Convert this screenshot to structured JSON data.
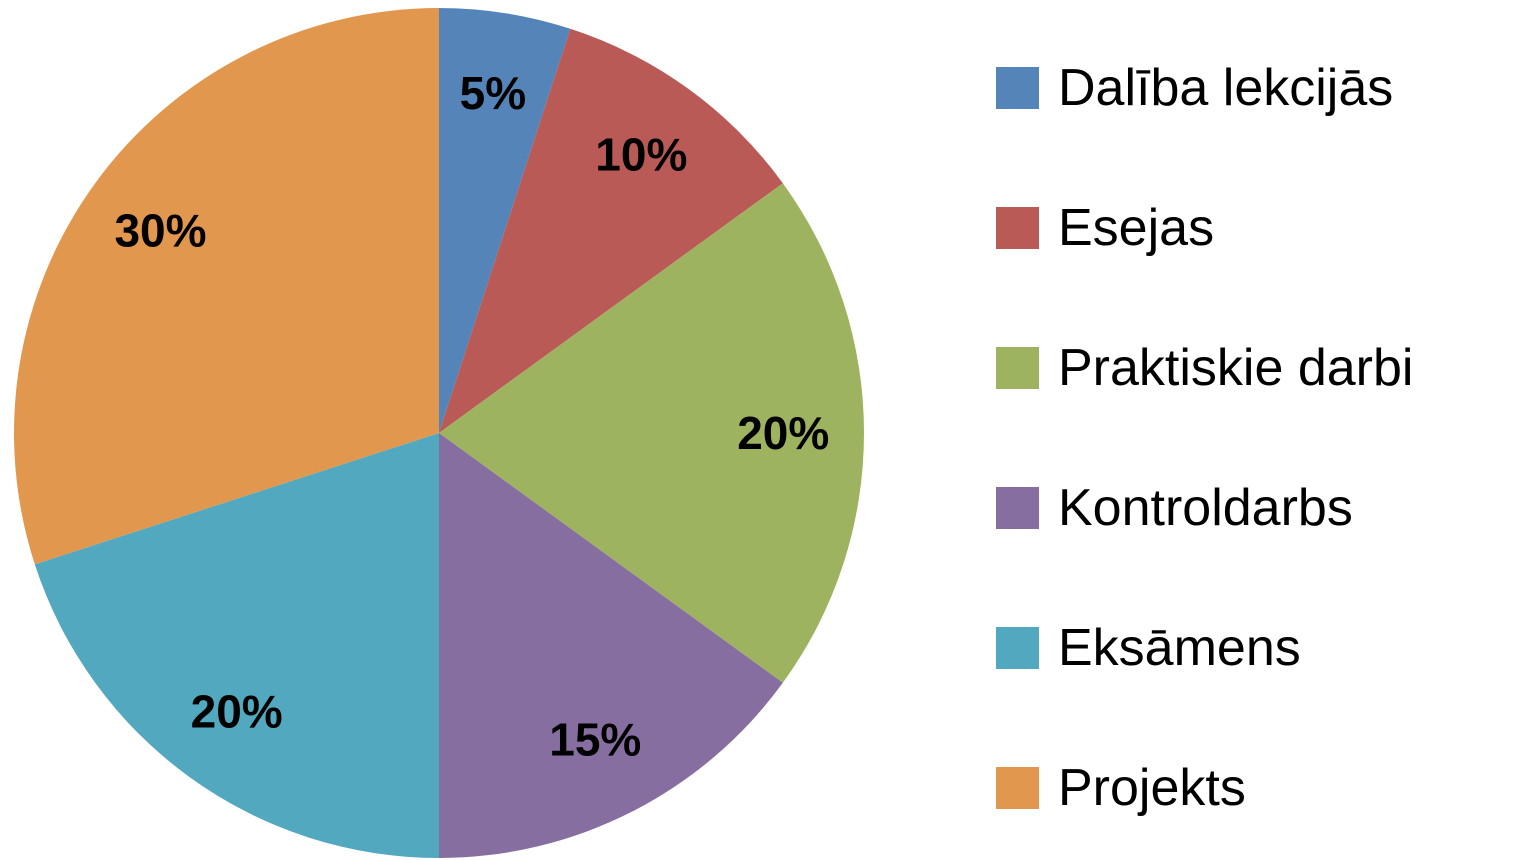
{
  "chart_data": {
    "type": "pie",
    "categories": [
      "Dalība lekcijās",
      "Esejas",
      "Praktiskie darbi",
      "Kontroldarbs",
      "Eksāmens",
      "Projekts"
    ],
    "values": [
      5,
      10,
      20,
      15,
      20,
      30
    ],
    "value_labels": [
      "5%",
      "10%",
      "20%",
      "15%",
      "20%",
      "30%"
    ],
    "colors": [
      "#5585b8",
      "#b95a57",
      "#9db35f",
      "#866ea0",
      "#52a8bf",
      "#e2974f"
    ],
    "legend": "right"
  }
}
